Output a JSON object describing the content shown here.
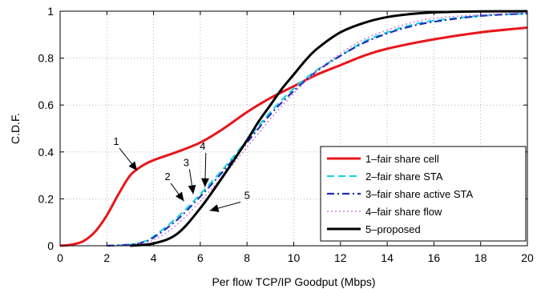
{
  "chart_data": {
    "type": "line",
    "xlabel": "Per flow TCP/IP Goodput (Mbps)",
    "ylabel": "C.D.F.",
    "xlim": [
      0,
      20
    ],
    "ylim": [
      0,
      1
    ],
    "xticks": [
      0,
      2,
      4,
      6,
      8,
      10,
      12,
      14,
      16,
      18,
      20
    ],
    "yticks": [
      0,
      0.2,
      0.4,
      0.6,
      0.8,
      1
    ],
    "xtick_labels": [
      "0",
      "2",
      "4",
      "6",
      "8",
      "10",
      "12",
      "14",
      "16",
      "18",
      "20"
    ],
    "ytick_labels": [
      "0",
      "0.2",
      "0.4",
      "0.6",
      "0.8",
      "1"
    ],
    "grid": true,
    "legend_position": "bottom-right",
    "series": [
      {
        "name": "1–fair share cell",
        "color": "#e8161b",
        "dash": "solid",
        "x": [
          0,
          0.5,
          1,
          1.5,
          2,
          2.5,
          3,
          3.5,
          4,
          5,
          6,
          7,
          8,
          9,
          10,
          11,
          12,
          13,
          14,
          16,
          18,
          20
        ],
        "y": [
          0,
          0.005,
          0.02,
          0.06,
          0.13,
          0.22,
          0.3,
          0.34,
          0.365,
          0.4,
          0.44,
          0.5,
          0.57,
          0.63,
          0.68,
          0.73,
          0.77,
          0.81,
          0.84,
          0.88,
          0.91,
          0.93
        ]
      },
      {
        "name": "2–fair share STA",
        "color": "#22d3e0",
        "dash": "dashed",
        "x": [
          2,
          3,
          3.5,
          4,
          5,
          6,
          7,
          8,
          9,
          10,
          11,
          12,
          13,
          14,
          15,
          16,
          18,
          20
        ],
        "y": [
          0,
          0.005,
          0.015,
          0.04,
          0.12,
          0.22,
          0.33,
          0.45,
          0.57,
          0.67,
          0.75,
          0.81,
          0.87,
          0.91,
          0.94,
          0.96,
          0.98,
          0.99
        ]
      },
      {
        "name": "3–fair share active STA",
        "color": "#1c2fb8",
        "dash": "dashdot",
        "x": [
          2,
          3,
          3.5,
          4,
          5,
          6,
          7,
          8,
          9,
          10,
          11,
          12,
          13,
          14,
          15,
          16,
          18,
          20
        ],
        "y": [
          0,
          0.005,
          0.013,
          0.035,
          0.11,
          0.21,
          0.32,
          0.44,
          0.56,
          0.66,
          0.745,
          0.81,
          0.865,
          0.905,
          0.935,
          0.955,
          0.98,
          0.99
        ]
      },
      {
        "name": "4–fair share flow",
        "color": "#d57be3",
        "dash": "dotted",
        "x": [
          2,
          3,
          4,
          5,
          6,
          7,
          8,
          9,
          10,
          11,
          12,
          13,
          14,
          15,
          16,
          18,
          20
        ],
        "y": [
          0,
          0.003,
          0.025,
          0.09,
          0.19,
          0.3,
          0.42,
          0.54,
          0.65,
          0.745,
          0.82,
          0.88,
          0.92,
          0.95,
          0.97,
          0.985,
          0.995
        ]
      },
      {
        "name": "5–proposed",
        "color": "#000000",
        "dash": "solid",
        "x": [
          3,
          4,
          5,
          6,
          7,
          8,
          8.5,
          9,
          9.5,
          10,
          10.5,
          11,
          12,
          13,
          14,
          15,
          16,
          18,
          20
        ],
        "y": [
          0,
          0.01,
          0.05,
          0.16,
          0.3,
          0.45,
          0.53,
          0.6,
          0.67,
          0.73,
          0.79,
          0.84,
          0.91,
          0.95,
          0.975,
          0.988,
          0.995,
          0.999,
          1.0
        ]
      }
    ],
    "annotations": [
      {
        "text": "1",
        "x": 2.4,
        "y": 0.43
      },
      {
        "text": "2",
        "x": 4.6,
        "y": 0.28
      },
      {
        "text": "3",
        "x": 5.4,
        "y": 0.34
      },
      {
        "text": "4",
        "x": 6.1,
        "y": 0.41
      },
      {
        "text": "5",
        "x": 8.0,
        "y": 0.2
      }
    ]
  }
}
